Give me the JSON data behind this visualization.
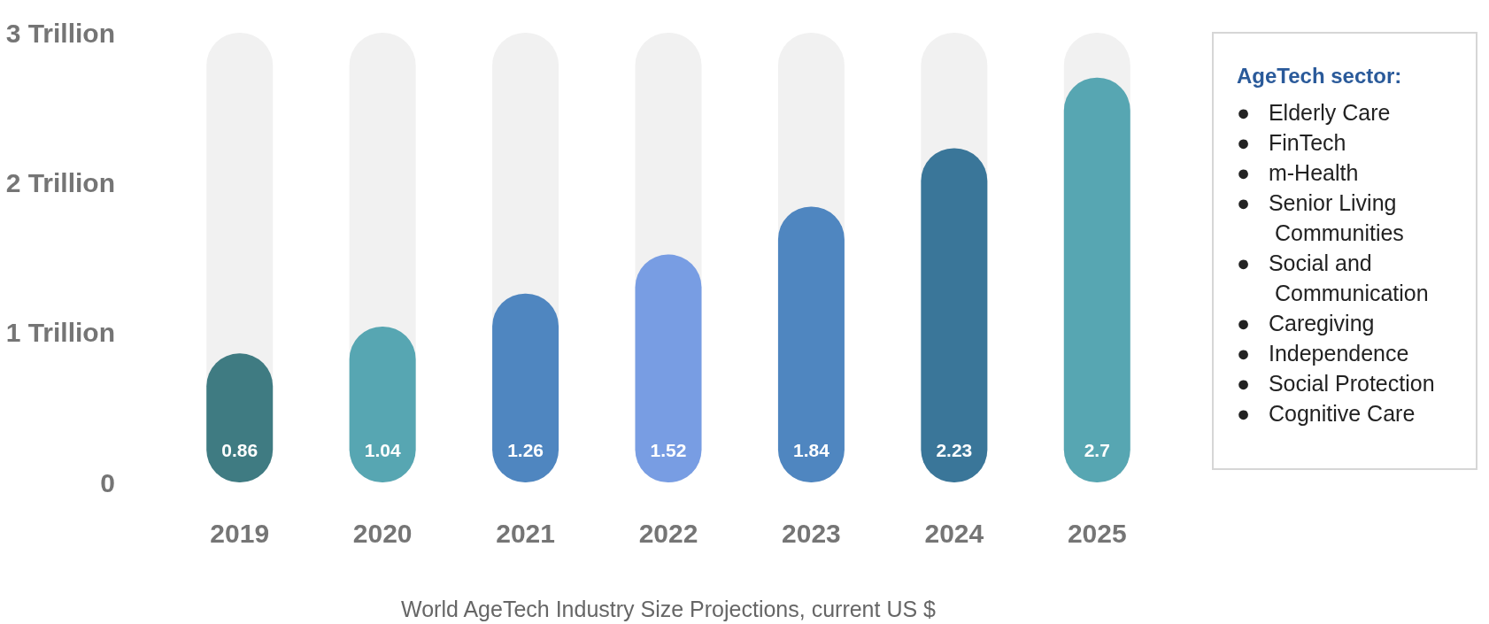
{
  "chart_data": [
    {
      "type": "bar",
      "xlabel": "World AgeTech Industry Size Projections, current US $",
      "categories": [
        "2019",
        "2020",
        "2021",
        "2022",
        "2023",
        "2024",
        "2025"
      ],
      "values": [
        0.86,
        1.04,
        1.26,
        1.52,
        1.84,
        2.23,
        2.7
      ],
      "colors": [
        "#3f7b82",
        "#57a6b2",
        "#4f86c0",
        "#789de3",
        "#4f86c0",
        "#3a7699",
        "#57a6b2"
      ],
      "ylim": [
        0,
        3
      ],
      "yticks": [
        0,
        {
          "value": 1,
          "label": "1 Trillion"
        },
        {
          "value": 2,
          "label": "2 Trillion"
        },
        {
          "value": 3,
          "label": "3 Trillion"
        }
      ],
      "grid": false,
      "data_labels": true
    },
    {
      "type": "other",
      "title": "AgeTech sector:",
      "annotations": [
        "●   Elderly Care",
        "●   FinTech",
        "●   m-Health",
        "●   Senior Living Communities",
        "●   Social and Communication",
        "●   Caregiving",
        "●   Independence",
        "●   Social Protection",
        "●   Cognitive Care"
      ]
    }
  ]
}
